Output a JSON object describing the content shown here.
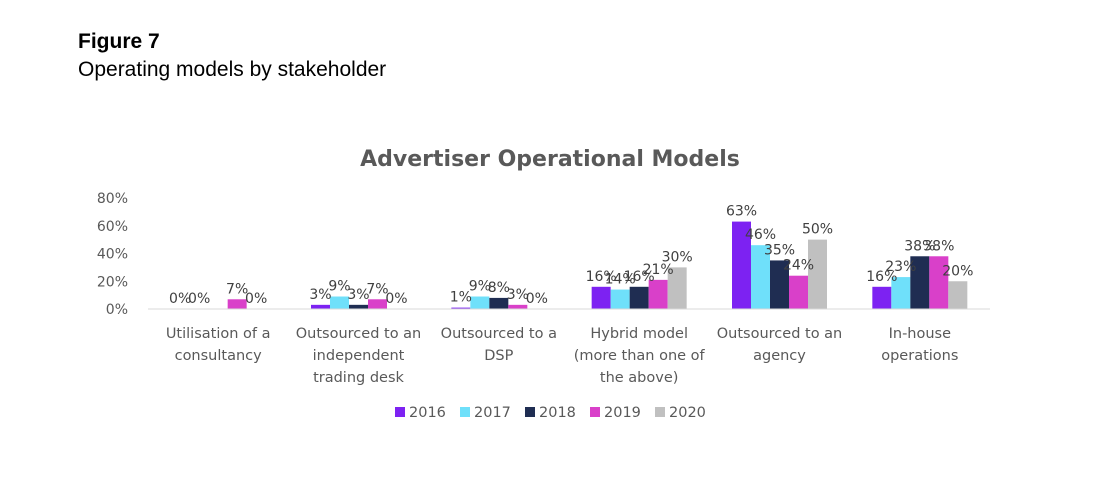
{
  "figure": {
    "label": "Figure 7",
    "caption": "Operating models by stakeholder"
  },
  "chart_data": {
    "type": "bar",
    "title": "Advertiser Operational Models",
    "xlabel": "",
    "ylabel": "",
    "ylim": [
      0,
      80
    ],
    "yticks": [
      "0%",
      "20%",
      "40%",
      "60%",
      "80%"
    ],
    "grid": false,
    "legend_position": "bottom",
    "categories": [
      [
        "Utilisation of a",
        "consultancy"
      ],
      [
        "Outsourced to an",
        "independent",
        "trading desk"
      ],
      [
        "Outsourced to a",
        "DSP"
      ],
      [
        "Hybrid model",
        "(more than one of",
        "the above)"
      ],
      [
        "Outsourced to an",
        "agency"
      ],
      [
        "In-house",
        "operations"
      ]
    ],
    "series": [
      {
        "name": "2016",
        "color": "#7d22f2",
        "values": [
          0,
          3,
          1,
          16,
          63,
          16
        ],
        "labels": [
          "0%",
          "3%",
          "1%",
          "16%",
          "63%",
          "16%"
        ]
      },
      {
        "name": "2017",
        "color": "#6fe0fa",
        "values": [
          0,
          9,
          9,
          14,
          46,
          23
        ],
        "labels": [
          "0%",
          "9%",
          "9%",
          "14%",
          "46%",
          "23%"
        ]
      },
      {
        "name": "2018",
        "color": "#1f2d52",
        "values": [
          0,
          3,
          8,
          16,
          35,
          38
        ],
        "labels": [
          "",
          "3%",
          "8%",
          "16%",
          "35%",
          "38%"
        ]
      },
      {
        "name": "2019",
        "color": "#d940c9",
        "values": [
          7,
          7,
          3,
          21,
          24,
          38
        ],
        "labels": [
          "7%",
          "7%",
          "3%",
          "21%",
          "24%",
          "38%"
        ]
      },
      {
        "name": "2020",
        "color": "#c0c0c0",
        "values": [
          0,
          0,
          0,
          30,
          50,
          20
        ],
        "labels": [
          "0%",
          "0%",
          "0%",
          "30%",
          "50%",
          "20%"
        ]
      }
    ]
  }
}
